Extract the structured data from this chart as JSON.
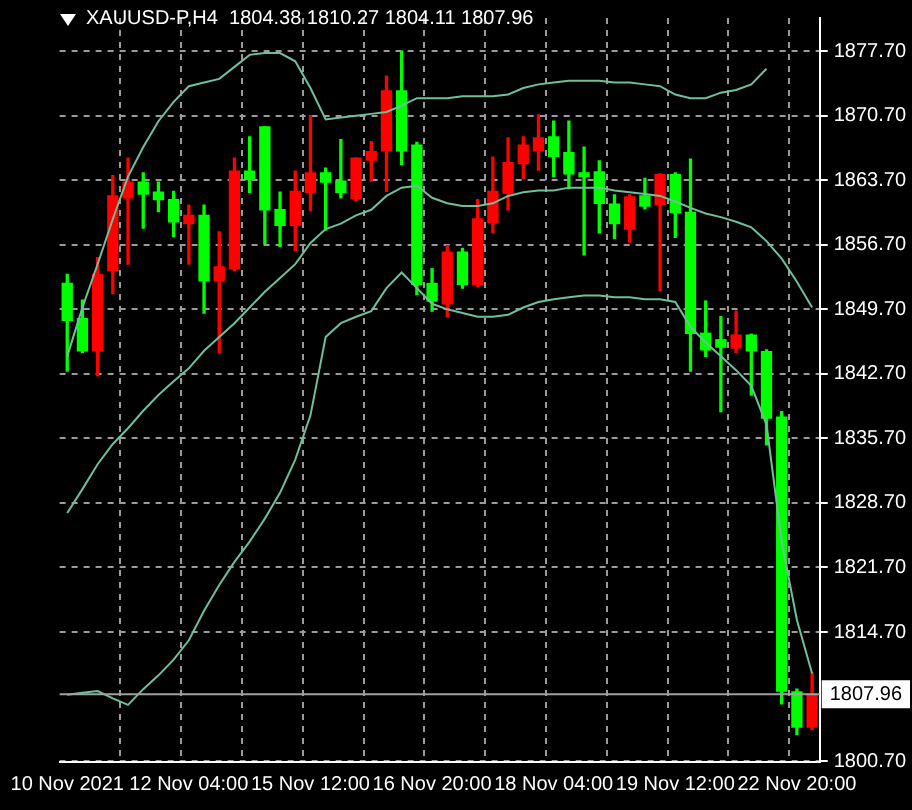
{
  "chart_data": {
    "type": "candlestick",
    "title": "XAUUSD-P,H4  1804.38 1810.27 1804.11 1807.96",
    "categories": [
      "10 Nov 2021",
      null,
      null,
      null,
      null,
      null,
      null,
      null,
      "12 Nov 04:00",
      null,
      null,
      null,
      null,
      null,
      null,
      null,
      "15 Nov 12:00",
      null,
      null,
      null,
      null,
      null,
      null,
      null,
      "16 Nov 20:00",
      null,
      null,
      null,
      null,
      null,
      null,
      null,
      "18 Nov 04:00",
      null,
      null,
      null,
      null,
      null,
      null,
      null,
      "19 Nov 12:00",
      null,
      null,
      null,
      null,
      null,
      null,
      null,
      "22 Nov 20:00",
      null
    ],
    "ohlc": [
      [
        1852.5,
        1853.5,
        1843.0,
        1848.5
      ],
      [
        1848.7,
        1850.7,
        1845.0,
        1845.2
      ],
      [
        1845.2,
        1855.3,
        1842.5,
        1853.5
      ],
      [
        1853.9,
        1864.2,
        1851.4,
        1862.0
      ],
      [
        1861.8,
        1866.1,
        1854.6,
        1863.5
      ],
      [
        1863.5,
        1864.5,
        1858.5,
        1862.2
      ],
      [
        1862.4,
        1863.5,
        1860.3,
        1861.6
      ],
      [
        1861.6,
        1862.5,
        1857.6,
        1859.2
      ],
      [
        1859.0,
        1861.0,
        1854.6,
        1859.9
      ],
      [
        1859.9,
        1861.0,
        1849.3,
        1852.8
      ],
      [
        1852.8,
        1858.1,
        1845.0,
        1854.3
      ],
      [
        1854.1,
        1866.1,
        1853.9,
        1864.7
      ],
      [
        1864.7,
        1868.4,
        1862.4,
        1863.8
      ],
      [
        1869.5,
        1869.5,
        1856.8,
        1860.5
      ],
      [
        1860.5,
        1862.4,
        1856.5,
        1858.8
      ],
      [
        1858.8,
        1864.7,
        1856.1,
        1862.5
      ],
      [
        1862.4,
        1870.7,
        1860.4,
        1864.5
      ],
      [
        1864.5,
        1865.0,
        1858.3,
        1863.5
      ],
      [
        1863.6,
        1868.1,
        1861.8,
        1862.4
      ],
      [
        1861.7,
        1866.1,
        1861.5,
        1866.1
      ],
      [
        1865.9,
        1867.9,
        1863.6,
        1866.8
      ],
      [
        1866.9,
        1875.0,
        1862.5,
        1873.4
      ],
      [
        1873.4,
        1877.7,
        1865.4,
        1866.9
      ],
      [
        1867.5,
        1867.8,
        1851.3,
        1852.4
      ],
      [
        1852.5,
        1854.1,
        1849.5,
        1850.6
      ],
      [
        1850.3,
        1856.6,
        1848.9,
        1855.9
      ],
      [
        1855.9,
        1856.3,
        1852.0,
        1852.4
      ],
      [
        1852.4,
        1861.6,
        1852.2,
        1859.5
      ],
      [
        1859.1,
        1866.2,
        1858.0,
        1862.5
      ],
      [
        1862.3,
        1868.3,
        1860.5,
        1865.6
      ],
      [
        1865.5,
        1868.4,
        1863.9,
        1867.5
      ],
      [
        1866.9,
        1870.8,
        1864.8,
        1868.3
      ],
      [
        1868.4,
        1870.1,
        1864.1,
        1866.3
      ],
      [
        1866.7,
        1870.1,
        1862.8,
        1864.4
      ],
      [
        1864.5,
        1867.3,
        1855.6,
        1864.1
      ],
      [
        1864.6,
        1865.8,
        1858.0,
        1861.2
      ],
      [
        1861.1,
        1862.1,
        1857.4,
        1859.0
      ],
      [
        1858.4,
        1862.1,
        1857.0,
        1861.9
      ],
      [
        1862.0,
        1863.9,
        1860.6,
        1860.9
      ],
      [
        1861.1,
        1864.4,
        1851.7,
        1864.3
      ],
      [
        1864.3,
        1864.5,
        1857.5,
        1860.2
      ],
      [
        1860.2,
        1866.0,
        1843.0,
        1847.1
      ],
      [
        1847.1,
        1850.6,
        1844.6,
        1845.3
      ],
      [
        1846.4,
        1848.9,
        1838.6,
        1845.6
      ],
      [
        1845.5,
        1849.5,
        1845.0,
        1846.9
      ],
      [
        1846.9,
        1847.0,
        1840.4,
        1845.2
      ],
      [
        1845.1,
        1845.3,
        1835.0,
        1837.9
      ],
      [
        1838.0,
        1838.6,
        1806.9,
        1808.3
      ],
      [
        1808.2,
        1808.5,
        1803.6,
        1804.4
      ],
      [
        1804.38,
        1810.27,
        1804.11,
        1807.96
      ]
    ],
    "colors": [
      "#00ff00",
      "#00ff00",
      "#ff0000",
      "#ff0000",
      "#ff0000",
      "#00ff00",
      "#00ff00",
      "#00ff00",
      "#ff0000",
      "#00ff00",
      "#ff0000",
      "#ff0000",
      "#00ff00",
      "#00ff00",
      "#00ff00",
      "#ff0000",
      "#ff0000",
      "#00ff00",
      "#00ff00",
      "#ff0000",
      "#ff0000",
      "#ff0000",
      "#00ff00",
      "#00ff00",
      "#00ff00",
      "#ff0000",
      "#00ff00",
      "#ff0000",
      "#ff0000",
      "#ff0000",
      "#ff0000",
      "#ff0000",
      "#00ff00",
      "#00ff00",
      "#00ff00",
      "#00ff00",
      "#00ff00",
      "#ff0000",
      "#00ff00",
      "#ff0000",
      "#00ff00",
      "#00ff00",
      "#00ff00",
      "#00ff00",
      "#ff0000",
      "#00ff00",
      "#00ff00",
      "#00ff00",
      "#00ff00",
      "#ff0000"
    ],
    "series": [
      {
        "type": "line",
        "color": "#6fbf9a",
        "values": [
          1844.6,
          1849.9,
          1854.6,
          1859.5,
          1864.1,
          1867.3,
          1870.1,
          1872.2,
          1873.9,
          1874.3,
          1874.7,
          1876.0,
          1877.3,
          1877.5,
          1877.5,
          1876.6,
          1873.7,
          1870.3,
          1870.5,
          1870.7,
          1870.9,
          1871.1,
          1871.8,
          1872.6,
          1872.6,
          1872.6,
          1872.8,
          1872.8,
          1872.8,
          1873.0,
          1873.7,
          1874.1,
          1874.3,
          1874.5,
          1874.5,
          1874.5,
          1874.3,
          1874.3,
          1874.1,
          1873.9,
          1873.0,
          1872.6,
          1872.6,
          1873.2,
          1873.5,
          1874.1,
          1875.8,
          null,
          null,
          null
        ]
      },
      {
        "type": "line",
        "color": "#6fbf9a",
        "values": [
          1827.6,
          1830.2,
          1832.9,
          1835.1,
          1836.8,
          1838.7,
          1840.4,
          1841.9,
          1843.3,
          1845.2,
          1846.7,
          1848.2,
          1849.9,
          1851.6,
          1853.1,
          1854.6,
          1856.9,
          1858.4,
          1859.0,
          1859.9,
          1860.5,
          1862.0,
          1862.9,
          1863.1,
          1861.8,
          1861.2,
          1860.9,
          1860.9,
          1861.2,
          1862.0,
          1862.4,
          1862.6,
          1862.6,
          1862.9,
          1862.9,
          1862.9,
          1862.6,
          1862.4,
          1862.2,
          1862.0,
          1861.4,
          1860.7,
          1860.1,
          1859.7,
          1859.2,
          1858.6,
          1857.1,
          1855.2,
          1852.7,
          1849.9
        ]
      },
      {
        "type": "line",
        "color": "#6fbf9a",
        "values": [
          1807.9,
          1808.1,
          1808.3,
          1807.5,
          1806.8,
          1808.5,
          1810.0,
          1811.7,
          1813.8,
          1817.0,
          1819.8,
          1822.3,
          1824.5,
          1827.0,
          1829.8,
          1833.4,
          1838.2,
          1846.7,
          1848.2,
          1848.9,
          1849.5,
          1852.0,
          1853.7,
          1852.0,
          1850.3,
          1849.7,
          1849.3,
          1848.9,
          1848.9,
          1849.1,
          1849.9,
          1850.5,
          1850.8,
          1851.0,
          1851.2,
          1851.2,
          1851.0,
          1851.0,
          1850.8,
          1850.8,
          1850.5,
          1847.8,
          1846.1,
          1844.6,
          1843.1,
          1841.4,
          1837.2,
          1824.5,
          1816.0,
          1810.2
        ]
      }
    ],
    "ylim": [
      1800.6,
      1881.3
    ],
    "yticks": [
      {
        "value": 1800.7,
        "label": "1800.70"
      },
      {
        "value": 1814.7,
        "label": "1814.70"
      },
      {
        "value": 1821.7,
        "label": "1821.70"
      },
      {
        "value": 1828.7,
        "label": "1828.70"
      },
      {
        "value": 1835.7,
        "label": "1835.70"
      },
      {
        "value": 1842.7,
        "label": "1842.70"
      },
      {
        "value": 1849.7,
        "label": "1849.70"
      },
      {
        "value": 1856.7,
        "label": "1856.70"
      },
      {
        "value": 1863.7,
        "label": "1863.70"
      },
      {
        "value": 1870.7,
        "label": "1870.70"
      },
      {
        "value": 1877.7,
        "label": "1877.70"
      }
    ],
    "ref_lines": [
      {
        "axis": "y",
        "value": 1807.96,
        "label": "1807.96",
        "color": "#a0a0a0"
      }
    ],
    "grid": true,
    "legend": false
  }
}
